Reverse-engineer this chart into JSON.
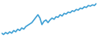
{
  "line_color": "#3d9fd4",
  "line_width": 1.2,
  "background_color": "#ffffff",
  "values": [
    42,
    40,
    43,
    41,
    44,
    42,
    46,
    44,
    48,
    46,
    50,
    48,
    52,
    54,
    56,
    58,
    62,
    66,
    70,
    65,
    55,
    60,
    62,
    58,
    62,
    65,
    63,
    67,
    66,
    70,
    68,
    72,
    71,
    74,
    73,
    76,
    75,
    78,
    77,
    80,
    79,
    82,
    81,
    84,
    83,
    85,
    84,
    87
  ]
}
